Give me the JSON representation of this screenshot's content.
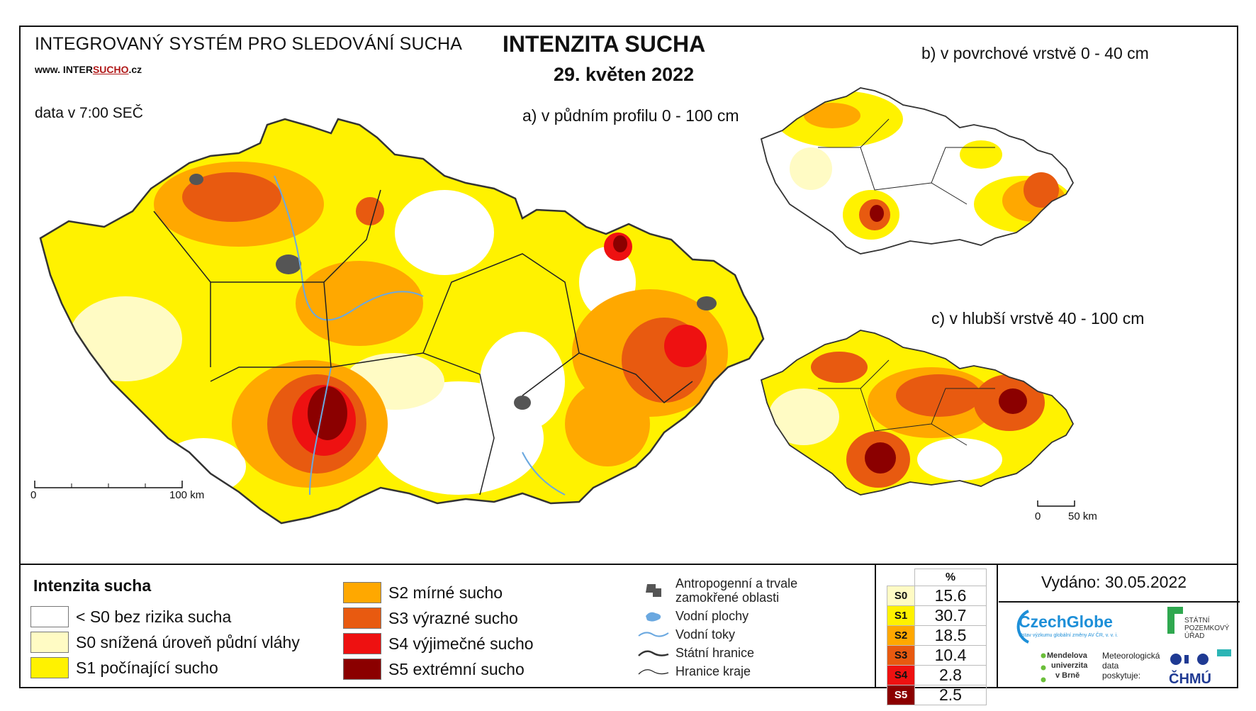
{
  "header": {
    "system_title": "INTEGROVANÝ SYSTÉM PRO SLEDOVÁNÍ SUCHA",
    "url_prefix": "www. INTER",
    "url_highlight": "SUCHO",
    "url_suffix": ".cz",
    "data_time": "data v 7:00 SEČ",
    "title": "INTENZITA SUCHA",
    "date": "29. květen 2022"
  },
  "maps": {
    "main_label": "a) v půdním profilu 0 - 100 cm",
    "surface_label": "b) v povrchové vrstvě 0 - 40 cm",
    "deep_label": "c) v hlubší vrstvě 40 - 100 cm",
    "main_scale": {
      "start": "0",
      "end": "100 km"
    },
    "small_scale": {
      "start": "0",
      "end": "50 km"
    }
  },
  "legend": {
    "title": "Intenzita sucha",
    "classes": [
      {
        "label": "< S0 bez rizika sucha",
        "color": "#ffffff"
      },
      {
        "label": "S0 snížená úroveň půdní vláhy",
        "color": "#fffbc4"
      },
      {
        "label": "S1 počínající sucho",
        "color": "#fff200"
      },
      {
        "label": "S2 mírné sucho",
        "color": "#ffa800"
      },
      {
        "label": "S3 výrazné sucho",
        "color": "#e85a10"
      },
      {
        "label": "S4 výjimečné sucho",
        "color": "#ee1111"
      },
      {
        "label": "S5 extrémní sucho",
        "color": "#8b0000"
      }
    ],
    "symbols": [
      {
        "label": "Antropogenní a trvale zamokřené oblasti",
        "icon": "urban-area-icon"
      },
      {
        "label": "Vodní plochy",
        "icon": "water-body-icon"
      },
      {
        "label": "Vodní toky",
        "icon": "river-icon"
      },
      {
        "label": "Státní hranice",
        "icon": "state-border-icon"
      },
      {
        "label": "Hranice kraje",
        "icon": "region-border-icon"
      }
    ]
  },
  "percentages": {
    "header": "%",
    "rows": [
      {
        "code": "S0",
        "value": "15.6",
        "color": "#fffbc4"
      },
      {
        "code": "S1",
        "value": "30.7",
        "color": "#fff200"
      },
      {
        "code": "S2",
        "value": "18.5",
        "color": "#ffa800"
      },
      {
        "code": "S3",
        "value": "10.4",
        "color": "#e85a10"
      },
      {
        "code": "S4",
        "value": "2.8",
        "color": "#ee1111"
      },
      {
        "code": "S5",
        "value": "2.5",
        "color": "#8b0000"
      }
    ]
  },
  "footer": {
    "issued": "Vydáno: 30.05.2022",
    "logo_czechglobe": "CzechGlobe",
    "logo_czechglobe_sub": "Ústav výzkumu globální změny AV ČR, v. v. i.",
    "logo_spu": "STÁTNÍ POZEMKOVÝ ÚŘAD",
    "logo_mendel": [
      "Mendelova",
      "univerzita",
      "v Brně"
    ],
    "meteo_line1": "Meteorologická",
    "meteo_line2": "data",
    "meteo_line3": "poskytuje:",
    "logo_chmu": "ČHMÚ"
  }
}
